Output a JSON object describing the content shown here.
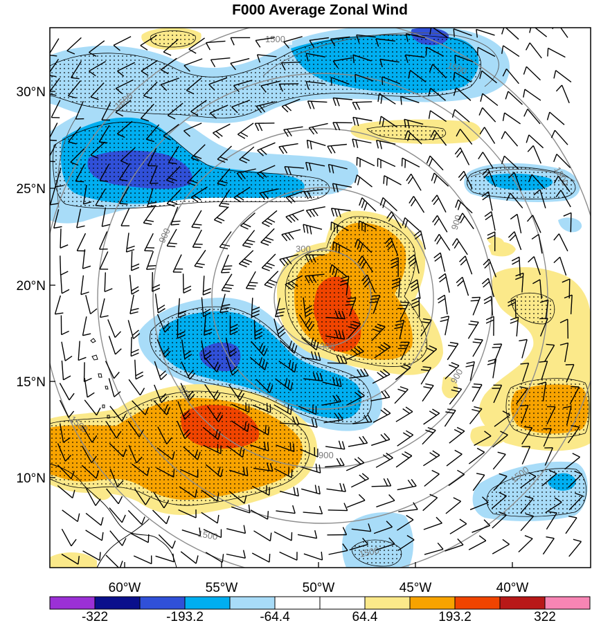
{
  "title": "F000 Average Zonal Wind",
  "latitude_labels": [
    "30°N",
    "25°N",
    "20°N",
    "15°N",
    "10°N"
  ],
  "longitude_labels": [
    "60°W",
    "55°W",
    "50°W",
    "45°W",
    "40°W"
  ],
  "colorbar": {
    "colors": [
      "#9b30d6",
      "#0a0f8c",
      "#3050d8",
      "#00aef0",
      "#a8dcf8",
      "#ffffff",
      "#ffffff",
      "#fbe98a",
      "#f7a300",
      "#f04400",
      "#b81818",
      "#f785b4"
    ],
    "labels": [
      "-322",
      "-193.2",
      "-64.4",
      "64.4",
      "193.2",
      "322"
    ]
  },
  "contour_labels": [
    "1500",
    "1500",
    "1500",
    "1500",
    "1500",
    "1500",
    "900",
    "900",
    "900",
    "900",
    "900",
    "300",
    "300"
  ],
  "palette": {
    "light_blue": "#a8dcf8",
    "cyan": "#00aef0",
    "dark_blue": "#3050d8",
    "yellow": "#fbe98a",
    "orange": "#f7a300",
    "red_orange": "#f04400"
  }
}
